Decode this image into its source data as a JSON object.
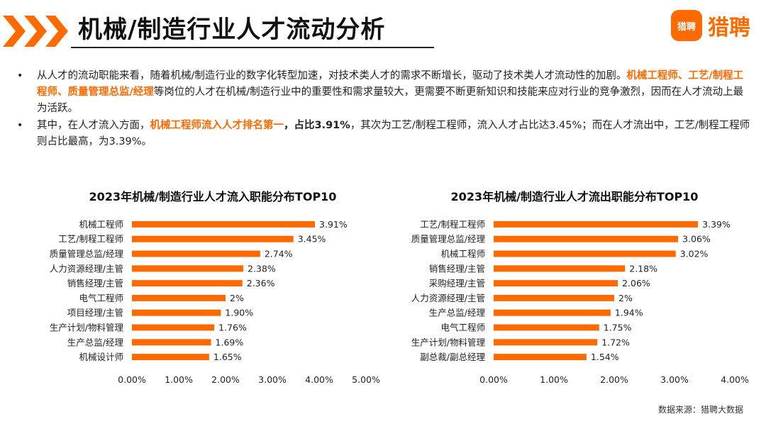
{
  "header": {
    "title": "机械/制造行业人才流动分析",
    "logo_mark": "猎聘",
    "logo_text": "猎聘"
  },
  "bullets": [
    {
      "runs": [
        {
          "t": "从人才的流动职能来看，随着机械/制造行业的数字化转型加速，对技术类人才的需求不断增长，驱动了技术类人才流动性的加剧。",
          "s": "n"
        },
        {
          "t": "机械工程师、工艺/制程工程师、质量管理总监/经理",
          "s": "hl"
        },
        {
          "t": "等岗位的人才在机械/制造行业中的重要性和需求量较大，更需要不断更新知识和技能来应对行业的竞争激烈，因而在人才流动上最为活跃。",
          "s": "n"
        }
      ]
    },
    {
      "runs": [
        {
          "t": "其中，在人才流入方面，",
          "s": "n"
        },
        {
          "t": "机械工程师流入人才排名第一",
          "s": "hl"
        },
        {
          "t": "，占比3.91%",
          "s": "b"
        },
        {
          "t": "，其次为工艺/制程工程师，流入人才占比达3.45%；而在人才流出中，工艺/制程工程师则占比最高，为3.39%。",
          "s": "n"
        }
      ]
    }
  ],
  "chart_data": [
    {
      "type": "bar",
      "orientation": "horizontal",
      "title": "2023年机械/制造行业人才流入职能分布TOP10",
      "categories": [
        "机械工程师",
        "工艺/制程工程师",
        "质量管理总监/经理",
        "人力资源经理/主管",
        "销售经理/主管",
        "电气工程师",
        "项目经理/主管",
        "生产计划/物料管理",
        "生产总监/经理",
        "机械设计师"
      ],
      "values": [
        3.91,
        3.45,
        2.74,
        2.38,
        2.36,
        2.0,
        1.9,
        1.76,
        1.69,
        1.65
      ],
      "labels": [
        "3.91%",
        "3.45%",
        "2.74%",
        "2.38%",
        "2.36%",
        "2%",
        "1.90%",
        "1.76%",
        "1.69%",
        "1.65%"
      ],
      "xlim": [
        0,
        5
      ],
      "ticks": [
        "0.00%",
        "1.00%",
        "2.00%",
        "3.00%",
        "4.00%",
        "5.00%"
      ],
      "color": "#ff6a00"
    },
    {
      "type": "bar",
      "orientation": "horizontal",
      "title": "2023年机械/制造行业人才流出职能分布TOP10",
      "categories": [
        "工艺/制程工程师",
        "质量管理总监/经理",
        "机械工程师",
        "销售经理/主管",
        "采购经理/主管",
        "人力资源经理/主管",
        "生产总监/经理",
        "电气工程师",
        "生产计划/物料管理",
        "副总裁/副总经理"
      ],
      "values": [
        3.39,
        3.06,
        3.02,
        2.18,
        2.06,
        2.0,
        1.94,
        1.75,
        1.72,
        1.54
      ],
      "labels": [
        "3.39%",
        "3.06%",
        "3.02%",
        "2.18%",
        "2.06%",
        "2%",
        "1.94%",
        "1.75%",
        "1.72%",
        "1.54%"
      ],
      "xlim": [
        0,
        4
      ],
      "ticks": [
        "0.00%",
        "1.00%",
        "2.00%",
        "3.00%",
        "4.00%"
      ],
      "color": "#ff6a00"
    }
  ],
  "source": "数据来源：猎聘大数据",
  "colors": {
    "accent": "#ff6a00",
    "text": "#222222"
  }
}
